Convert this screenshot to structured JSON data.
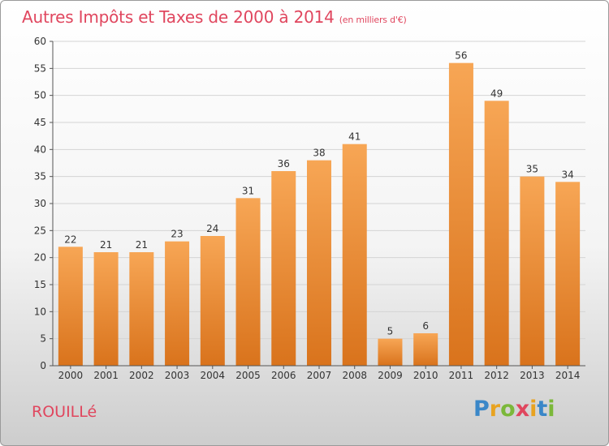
{
  "header": {
    "title": "Autres Impôts et Taxes de 2000 à 2014",
    "subtitle": "(en milliers d'€)"
  },
  "footer": {
    "commune": "ROUILLé",
    "logo_letters": [
      "P",
      "r",
      "o",
      "x",
      "i",
      "t",
      "i"
    ],
    "logo_colors": [
      "#3a87c8",
      "#e8a321",
      "#7bb83a",
      "#e0465e",
      "#e8a321",
      "#3a87c8",
      "#7bb83a"
    ]
  },
  "chart_data": {
    "type": "bar",
    "categories": [
      "2000",
      "2001",
      "2002",
      "2003",
      "2004",
      "2005",
      "2006",
      "2007",
      "2008",
      "2009",
      "2010",
      "2011",
      "2012",
      "2013",
      "2014"
    ],
    "values": [
      22,
      21,
      21,
      23,
      24,
      31,
      36,
      38,
      41,
      5,
      6,
      56,
      49,
      35,
      34
    ],
    "ylim": [
      0,
      60
    ],
    "yticks": [
      0,
      5,
      10,
      15,
      20,
      25,
      30,
      35,
      40,
      45,
      50,
      55,
      60
    ],
    "grid": true,
    "bar_color_top": "#f7a655",
    "bar_color_bottom": "#d9731c"
  }
}
